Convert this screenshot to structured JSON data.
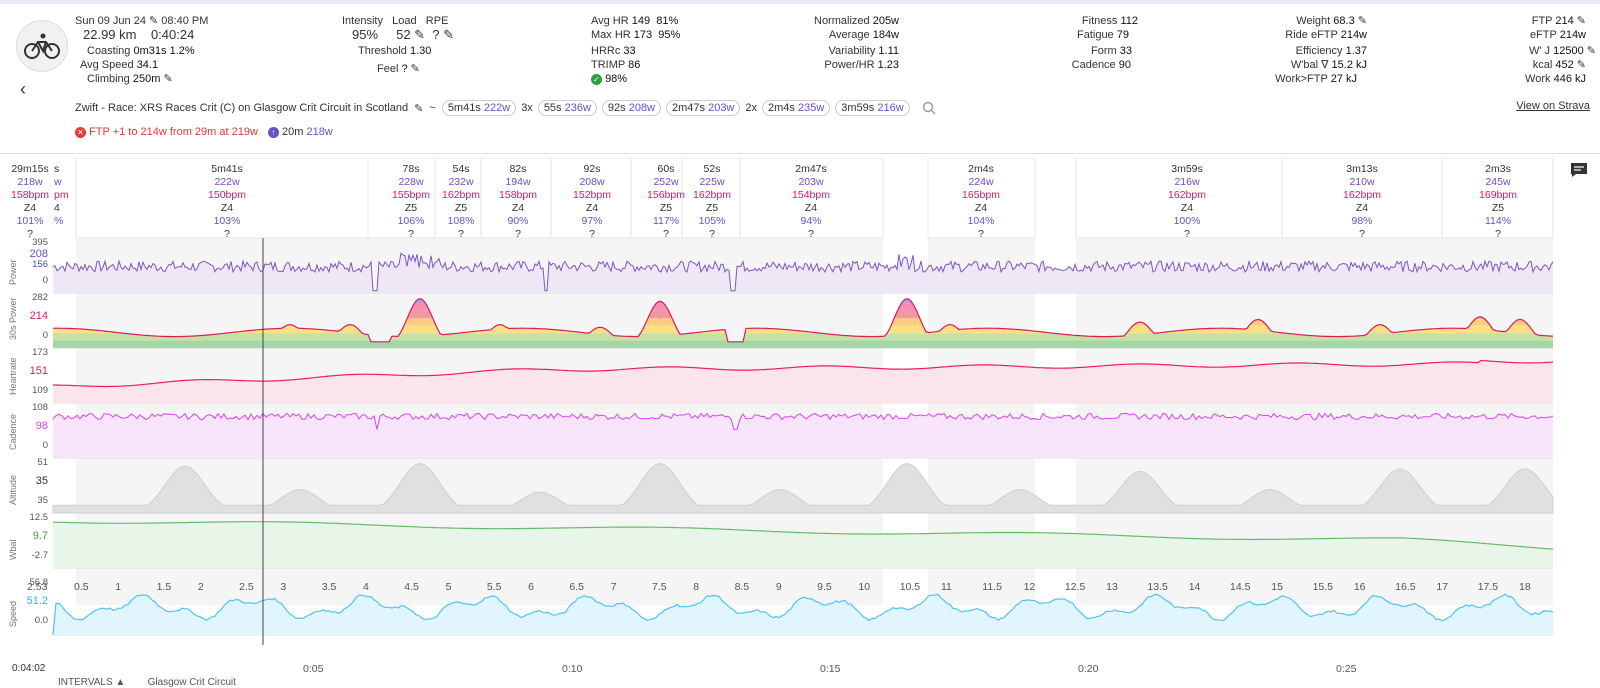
{
  "header": {
    "date": "Sun 09 Jun 24",
    "time": "08:40 PM",
    "distance": "22.99 km",
    "duration": "0:40:24",
    "coasting_label": "Coasting",
    "coasting_value": "0m31s",
    "coasting_pct": "1.2%",
    "avg_speed_label": "Avg Speed",
    "avg_speed": "34.1",
    "climbing_label": "Climbing",
    "climbing": "250m",
    "intensity_label": "Intensity",
    "intensity": "95%",
    "load_label": "Load",
    "load": "52",
    "rpe_label": "RPE",
    "rpe": "?",
    "threshold_label": "Threshold",
    "threshold": "1.30",
    "feel_label": "Feel",
    "feel": "?",
    "avg_hr_label": "Avg HR",
    "avg_hr": "149",
    "avg_hr_pct": "81%",
    "max_hr_label": "Max HR",
    "max_hr": "173",
    "max_hr_pct": "95%",
    "hrrc_label": "HRRc",
    "hrrc": "33",
    "trimp_label": "TRIMP",
    "trimp": "86",
    "check_pct": "98%",
    "normalized_label": "Normalized",
    "normalized": "205w",
    "average_label": "Average",
    "average": "184w",
    "variability_label": "Variability",
    "variability": "1.11",
    "powerhr_label": "Power/HR",
    "powerhr": "1.23",
    "fitness_label": "Fitness",
    "fitness": "112",
    "fatigue_label": "Fatigue",
    "fatigue": "79",
    "form_label": "Form",
    "form": "33",
    "cadence_label": "Cadence",
    "cadence": "90",
    "weight_label": "Weight",
    "weight": "68.3",
    "ride_eftp_label": "Ride eFTP",
    "ride_eftp": "214w",
    "efficiency_label": "Efficiency",
    "efficiency": "1.37",
    "wbal_label": "W'bal ∇",
    "wbal": "15.2 kJ",
    "workftp_label": "Work>FTP",
    "workftp": "27 kJ",
    "ftp_label": "FTP",
    "ftp": "214",
    "eftp_label": "eFTP",
    "eftp": "214w",
    "wj_label": "W' J",
    "wj": "12500",
    "kcal_label": "kcal",
    "kcal": "452",
    "work_label": "Work",
    "work": "446 kJ",
    "title": "Zwift - Race: XRS Races Crit (C) on Glasgow Crit Circuit in Scotland",
    "tilde": "~",
    "chips": [
      {
        "prefix": "",
        "dur": "5m41s",
        "w": "222w"
      },
      {
        "prefix": "3x",
        "dur": "55s",
        "w": "236w"
      },
      {
        "prefix": "",
        "dur": "92s",
        "w": "208w"
      },
      {
        "prefix": "",
        "dur": "2m47s",
        "w": "203w"
      },
      {
        "prefix": "2x",
        "dur": "2m4s",
        "w": "235w"
      },
      {
        "prefix": "",
        "dur": "3m59s",
        "w": "216w"
      }
    ],
    "view_strava": "View on Strava",
    "alert_ftp": "FTP +1 to 214w from 29m at 219w",
    "alert_20m_label": "20m",
    "alert_20m_value": "218w"
  },
  "intervals": [
    {
      "dur": "29m15s",
      "w": "218w",
      "bpm": "158bpm",
      "z": "Z4",
      "pct": "101%",
      "q": "?"
    },
    {
      "dur": "5m41s",
      "w": "222w",
      "bpm": "150bpm",
      "z": "Z4",
      "pct": "103%",
      "q": "?"
    },
    {
      "dur": "78s",
      "w": "228w",
      "bpm": "155bpm",
      "z": "Z5",
      "pct": "106%",
      "q": "?"
    },
    {
      "dur": "54s",
      "w": "232w",
      "bpm": "162bpm",
      "z": "Z5",
      "pct": "108%",
      "q": "?"
    },
    {
      "dur": "82s",
      "w": "194w",
      "bpm": "158bpm",
      "z": "Z4",
      "pct": "90%",
      "q": "?"
    },
    {
      "dur": "92s",
      "w": "208w",
      "bpm": "152bpm",
      "z": "Z4",
      "pct": "97%",
      "q": "?"
    },
    {
      "dur": "60s",
      "w": "252w",
      "bpm": "156bpm",
      "z": "Z5",
      "pct": "117%",
      "q": "?"
    },
    {
      "dur": "52s",
      "w": "225w",
      "bpm": "162bpm",
      "z": "Z5",
      "pct": "105%",
      "q": "?"
    },
    {
      "dur": "2m47s",
      "w": "203w",
      "bpm": "154bpm",
      "z": "Z4",
      "pct": "94%",
      "q": "?"
    },
    {
      "dur": "2m4s",
      "w": "224w",
      "bpm": "165bpm",
      "z": "Z4",
      "pct": "104%",
      "q": "?"
    },
    {
      "dur": "3m59s",
      "w": "216w",
      "bpm": "162bpm",
      "z": "Z4",
      "pct": "100%",
      "q": "?"
    },
    {
      "dur": "3m13s",
      "w": "210w",
      "bpm": "162bpm",
      "z": "Z4",
      "pct": "98%",
      "q": "?"
    },
    {
      "dur": "2m3s",
      "w": "245w",
      "bpm": "169bpm",
      "z": "Z5",
      "pct": "114%",
      "q": "?"
    }
  ],
  "first_col_fragment": {
    "a": "s",
    "b": "w",
    "c": "pm",
    "d": "4",
    "e": "%"
  },
  "panels": [
    {
      "name": "Power",
      "ticks": [
        "395",
        "208",
        "156",
        "0"
      ],
      "colors": [
        "#555",
        "#6a4fc9",
        "#3f51b5",
        "#555"
      ]
    },
    {
      "name": "30s Power",
      "ticks": [
        "282",
        "214",
        "0"
      ],
      "colors": [
        "#555",
        "#d81b60",
        "#555"
      ]
    },
    {
      "name": "Heartrate",
      "ticks": [
        "173",
        "151",
        "109"
      ],
      "colors": [
        "#555",
        "#d81b60",
        "#555"
      ]
    },
    {
      "name": "Cadence",
      "ticks": [
        "108",
        "98",
        "0"
      ],
      "colors": [
        "#555",
        "#e040fb",
        "#555"
      ]
    },
    {
      "name": "Altitude",
      "ticks": [
        "51",
        "35",
        "35"
      ],
      "colors": [
        "#555",
        "#333",
        "#555"
      ]
    },
    {
      "name": "Wbal",
      "ticks": [
        "12.5",
        "9.7",
        "-2.7"
      ],
      "colors": [
        "#555",
        "#43a047",
        "#555"
      ]
    },
    {
      "name": "Speed",
      "ticks": [
        "56.8",
        "51.2",
        "0.0"
      ],
      "colors": [
        "#555",
        "#29b6f6",
        "#555"
      ]
    }
  ],
  "distance_axis": {
    "first": "2.53",
    "ticks": [
      "0.5",
      "1",
      "1.5",
      "2",
      "2.5",
      "3",
      "3.5",
      "4",
      "4.5",
      "5",
      "5.5",
      "6",
      "6.5",
      "7",
      "7.5",
      "8",
      "8.5",
      "9",
      "9.5",
      "10",
      "10.5",
      "11",
      "11.5",
      "12",
      "12.5",
      "13",
      "13.5",
      "14",
      "14.5",
      "15",
      "15.5",
      "16",
      "16.5",
      "17",
      "17.5",
      "18"
    ]
  },
  "time_axis": {
    "cursor": "0:04:02",
    "ticks": [
      "0:05",
      "0:10",
      "0:15",
      "0:20",
      "0:25"
    ]
  },
  "footer": {
    "intervals": "INTERVALS ▲",
    "route": "Glasgow Crit Circuit"
  },
  "colors": {
    "power": "#7e57c2",
    "hr": "#e91e63",
    "cadence": "#e040fb",
    "altitude": "#bdbdbd",
    "wbal": "#66bb6a",
    "speed": "#4fc3f7"
  }
}
